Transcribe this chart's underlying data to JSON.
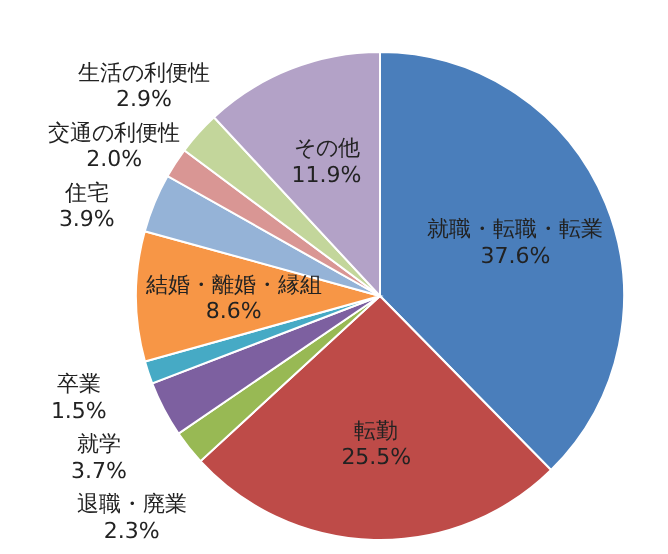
{
  "chart_data": {
    "type": "pie",
    "categories": [
      "就職・転職・転業",
      "転勤",
      "退職・廃業",
      "就学",
      "卒業",
      "結婚・離婚・縁組",
      "住宅",
      "交通の利便性",
      "生活の利便性",
      "その他"
    ],
    "values": [
      37.6,
      25.5,
      2.3,
      3.7,
      1.5,
      8.6,
      3.9,
      2.0,
      2.9,
      11.9
    ],
    "colors": [
      "#4a7ebb",
      "#be4b48",
      "#98b954",
      "#7d60a0",
      "#46aac5",
      "#f79646",
      "#95b3d7",
      "#d99694",
      "#c3d69b",
      "#b3a2c7"
    ],
    "value_labels": [
      "37.6%",
      "25.5%",
      "2.3%",
      "3.7%",
      "1.5%",
      "8.6%",
      "3.9%",
      "2.0%",
      "2.9%",
      "11.9%"
    ]
  }
}
